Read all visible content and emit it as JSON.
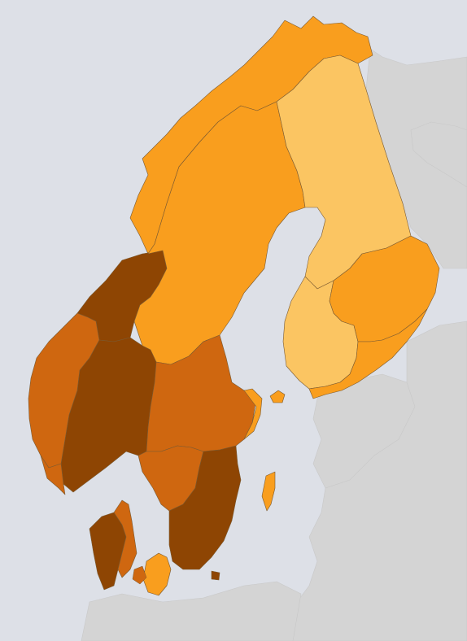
{
  "map": {
    "palette": {
      "sea": "#dde0e7",
      "background_land": "#d4d4d4",
      "level_1": "#fbc562",
      "level_2": "#f99e1e",
      "level_3": "#cf6710",
      "level_4": "#8e4503"
    },
    "regions": [
      {
        "name": "northern-norway",
        "level": 2
      },
      {
        "name": "west-norway",
        "level": 3
      },
      {
        "name": "trondelag",
        "level": 4
      },
      {
        "name": "central-norway",
        "level": 4
      },
      {
        "name": "southern-norway",
        "level": 3
      },
      {
        "name": "northern-sweden",
        "level": 2
      },
      {
        "name": "central-sweden",
        "level": 3
      },
      {
        "name": "stockholm",
        "level": 2
      },
      {
        "name": "west-sweden",
        "level": 3
      },
      {
        "name": "south-sweden",
        "level": 4
      },
      {
        "name": "gotland",
        "level": 2
      },
      {
        "name": "northern-finland",
        "level": 1
      },
      {
        "name": "west-finland",
        "level": 1
      },
      {
        "name": "eastern-finland",
        "level": 2
      },
      {
        "name": "southern-finland",
        "level": 2
      },
      {
        "name": "aland",
        "level": 2
      },
      {
        "name": "denmark-jutland-west",
        "level": 4
      },
      {
        "name": "denmark-jutland-east",
        "level": 3
      },
      {
        "name": "denmark-zealand",
        "level": 2
      },
      {
        "name": "bornholm",
        "level": 4
      }
    ]
  }
}
